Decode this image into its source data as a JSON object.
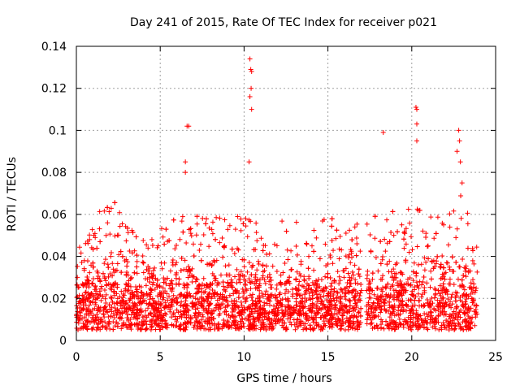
{
  "chart_data": {
    "type": "scatter",
    "title": "Day 241 of 2015, Rate Of TEC Index for receiver p021",
    "xlabel": "GPS time / hours",
    "ylabel": "ROTI / TECUs",
    "xlim": [
      0,
      25
    ],
    "ylim": [
      0,
      0.14
    ],
    "xticks": [
      0,
      5,
      10,
      15,
      20,
      25
    ],
    "xtick_labels": [
      "0",
      "5",
      "10",
      "15",
      "20",
      "25"
    ],
    "yticks": [
      0,
      0.02,
      0.04,
      0.06,
      0.08,
      0.1,
      0.12,
      0.14
    ],
    "ytick_labels": [
      "0",
      "0.02",
      "0.04",
      "0.06",
      "0.08",
      "0.1",
      "0.12",
      "0.14"
    ],
    "grid": true,
    "marker": "+",
    "color": "#ff0000",
    "data_gap_hours": [
      17.0,
      17.3
    ],
    "notable_points": [
      {
        "x": 10.35,
        "y": 0.134
      },
      {
        "x": 10.4,
        "y": 0.129
      },
      {
        "x": 10.45,
        "y": 0.128
      },
      {
        "x": 10.42,
        "y": 0.12
      },
      {
        "x": 10.35,
        "y": 0.116
      },
      {
        "x": 10.45,
        "y": 0.11
      },
      {
        "x": 10.3,
        "y": 0.085
      },
      {
        "x": 6.6,
        "y": 0.102
      },
      {
        "x": 6.7,
        "y": 0.102
      },
      {
        "x": 18.3,
        "y": 0.099
      },
      {
        "x": 20.25,
        "y": 0.111
      },
      {
        "x": 20.3,
        "y": 0.11
      },
      {
        "x": 20.3,
        "y": 0.103
      },
      {
        "x": 20.3,
        "y": 0.095
      },
      {
        "x": 22.8,
        "y": 0.1
      },
      {
        "x": 22.85,
        "y": 0.095
      },
      {
        "x": 22.7,
        "y": 0.09
      },
      {
        "x": 22.9,
        "y": 0.085
      },
      {
        "x": 23.0,
        "y": 0.075
      },
      {
        "x": 6.5,
        "y": 0.085
      },
      {
        "x": 6.5,
        "y": 0.08
      }
    ],
    "series": [
      {
        "name": "ROTI",
        "envelope_hours": [
          0,
          1,
          2,
          3,
          4,
          5,
          6,
          7,
          8,
          9,
          10,
          11,
          12,
          13,
          14,
          15,
          16,
          17,
          18,
          19,
          20,
          21,
          22,
          23,
          24
        ],
        "envelope_max": [
          0.045,
          0.06,
          0.07,
          0.055,
          0.05,
          0.055,
          0.06,
          0.062,
          0.058,
          0.06,
          0.062,
          0.058,
          0.06,
          0.065,
          0.055,
          0.06,
          0.058,
          0.06,
          0.06,
          0.062,
          0.065,
          0.06,
          0.06,
          0.07,
          0.05
        ],
        "typical_range": [
          0.005,
          0.04
        ]
      }
    ]
  }
}
